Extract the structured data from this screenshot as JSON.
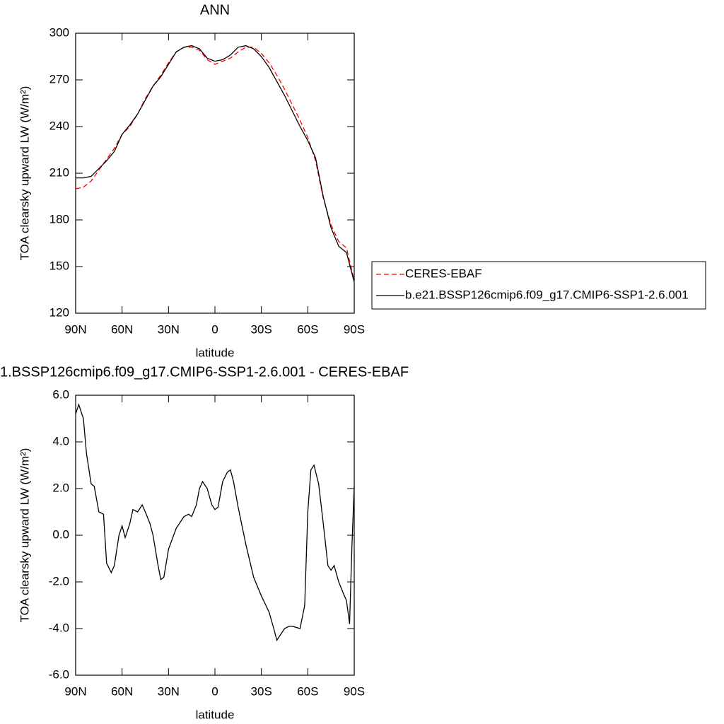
{
  "chart_data": [
    {
      "type": "line",
      "title": "ANN",
      "xlabel": "latitude",
      "ylabel": "TOA clearsky upward LW (W/m²)",
      "x": [
        90,
        85,
        80,
        75,
        70,
        65,
        60,
        55,
        50,
        45,
        40,
        35,
        30,
        25,
        20,
        15,
        10,
        5,
        0,
        -5,
        -10,
        -15,
        -20,
        -25,
        -30,
        -35,
        -40,
        -45,
        -50,
        -55,
        -60,
        -65,
        -70,
        -75,
        -80,
        -85,
        -90
      ],
      "series": [
        {
          "name": "CERES-EBAF",
          "color": "#ff0000",
          "linestyle": "dashed",
          "values": [
            200,
            201,
            205,
            212,
            219,
            226,
            235,
            240,
            248,
            258,
            266,
            273,
            281,
            288,
            291,
            291,
            289,
            283,
            280,
            282,
            284,
            288,
            291,
            291,
            287,
            281,
            273,
            264,
            254,
            244,
            233,
            218,
            194,
            177,
            166,
            162,
            141
          ]
        },
        {
          "name": "b.e21.BSSP126cmip6.f09_g17.CMIP6-SSP1-2.6.001",
          "color": "#000000",
          "linestyle": "solid",
          "values": [
            207,
            207,
            208,
            213,
            218,
            224,
            235,
            241,
            248,
            257,
            266,
            272,
            280,
            288,
            291,
            292,
            290,
            284,
            282,
            283,
            286,
            291,
            292,
            290,
            285,
            278,
            269,
            260,
            250,
            240,
            231,
            220,
            195,
            175,
            163,
            159,
            140
          ]
        }
      ],
      "legend": "right",
      "xlim": [
        90,
        -90
      ],
      "xticks": [
        {
          "value": 90,
          "label": "90N"
        },
        {
          "value": 60,
          "label": "60N"
        },
        {
          "value": 30,
          "label": "30N"
        },
        0,
        {
          "value": -30,
          "label": "30S"
        },
        {
          "value": -60,
          "label": "60S"
        },
        {
          "value": -90,
          "label": "90S"
        }
      ],
      "ylim": [
        120,
        300
      ],
      "yticks": [
        120,
        150,
        180,
        210,
        240,
        270,
        300
      ]
    },
    {
      "type": "line",
      "title": "1.BSSP126cmip6.f09_g17.CMIP6-SSP1-2.6.001 - CERES-EBAF",
      "xlabel": "latitude",
      "ylabel": "TOA clearsky upward LW (W/m²)",
      "x": [
        90,
        88,
        85,
        83,
        80,
        78,
        75,
        72,
        70,
        67,
        65,
        62,
        60,
        58,
        55,
        53,
        50,
        47,
        45,
        42,
        40,
        37,
        35,
        33,
        31,
        30,
        25,
        20,
        17,
        15,
        12,
        10,
        8,
        5,
        2,
        0,
        -2,
        -5,
        -8,
        -10,
        -12,
        -15,
        -20,
        -25,
        -30,
        -35,
        -38,
        -40,
        -43,
        -45,
        -48,
        -50,
        -55,
        -58,
        -60,
        -62,
        -64,
        -67,
        -70,
        -73,
        -75,
        -77,
        -80,
        -83,
        -85,
        -87,
        -88.5,
        -90
      ],
      "series": [
        {
          "color": "#000000",
          "linestyle": "solid",
          "values": [
            5.2,
            5.6,
            5.0,
            3.5,
            2.2,
            2.1,
            1.0,
            0.9,
            -1.2,
            -1.6,
            -1.3,
            0.0,
            0.4,
            -0.1,
            0.5,
            1.1,
            1.0,
            1.3,
            1.0,
            0.5,
            0.0,
            -1.2,
            -1.9,
            -1.8,
            -1.0,
            -0.6,
            0.3,
            0.8,
            0.9,
            0.8,
            1.3,
            2.0,
            2.3,
            2.0,
            1.3,
            1.1,
            1.2,
            2.3,
            2.7,
            2.8,
            2.3,
            1.2,
            -0.4,
            -1.8,
            -2.6,
            -3.3,
            -4.0,
            -4.5,
            -4.2,
            -4.0,
            -3.9,
            -3.9,
            -4.0,
            -3.0,
            1.0,
            2.8,
            3.0,
            2.2,
            0.5,
            -1.3,
            -1.5,
            -1.3,
            -2.0,
            -2.5,
            -2.8,
            -3.8,
            -0.5,
            2.1
          ]
        }
      ],
      "xlim": [
        90,
        -90
      ],
      "xticks": [
        {
          "value": 90,
          "label": "90N"
        },
        {
          "value": 60,
          "label": "60N"
        },
        {
          "value": 30,
          "label": "30N"
        },
        0,
        {
          "value": -30,
          "label": "30S"
        },
        {
          "value": -60,
          "label": "60S"
        },
        {
          "value": -90,
          "label": "90S"
        }
      ],
      "ylim": [
        -6,
        6
      ],
      "yticks": [
        {
          "value": -6,
          "label": "-6.0"
        },
        {
          "value": -4,
          "label": "-4.0"
        },
        {
          "value": -2,
          "label": "-2.0"
        },
        {
          "value": 0,
          "label": "0.0"
        },
        {
          "value": 2,
          "label": "2.0"
        },
        {
          "value": 4,
          "label": "4.0"
        },
        {
          "value": 6,
          "label": "6.0"
        }
      ]
    }
  ]
}
